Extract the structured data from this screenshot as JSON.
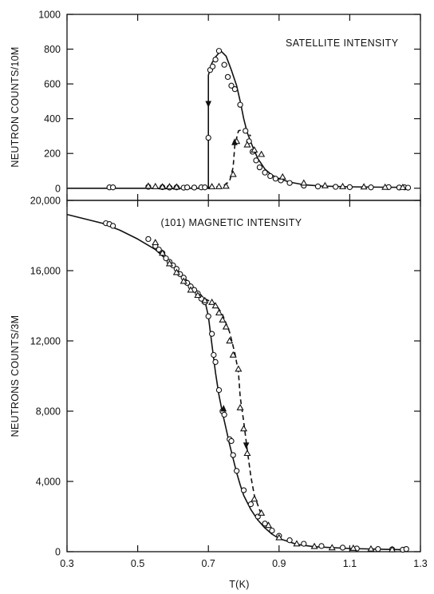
{
  "chart_data": [
    {
      "type": "line",
      "annotation": "SATELLITE INTENSITY",
      "ylabel": "NEUTRON COUNTS/10M",
      "xlabel": "",
      "xlim": [
        0.3,
        1.3
      ],
      "ylim": [
        -70,
        1000
      ],
      "yticks": [
        0,
        200,
        400,
        600,
        800,
        1000
      ],
      "ytick_labels": [
        "0",
        "200",
        "400",
        "600",
        "800",
        "1000"
      ],
      "xticks": [
        0.3,
        0.5,
        0.7,
        0.9,
        1.1,
        1.3
      ],
      "grid": false,
      "series": [
        {
          "marker": "circle",
          "style": "points",
          "points": [
            [
              0.42,
              5
            ],
            [
              0.43,
              5
            ],
            [
              0.53,
              8
            ],
            [
              0.57,
              6
            ],
            [
              0.59,
              4
            ],
            [
              0.61,
              5
            ],
            [
              0.63,
              3
            ],
            [
              0.64,
              5
            ],
            [
              0.66,
              4
            ],
            [
              0.68,
              5
            ],
            [
              0.69,
              5
            ],
            [
              0.7,
              290
            ],
            [
              0.705,
              680
            ],
            [
              0.712,
              700
            ],
            [
              0.72,
              740
            ],
            [
              0.73,
              790
            ],
            [
              0.745,
              710
            ],
            [
              0.755,
              640
            ],
            [
              0.765,
              590
            ],
            [
              0.775,
              570
            ],
            [
              0.79,
              480
            ],
            [
              0.805,
              330
            ],
            [
              0.815,
              270
            ],
            [
              0.825,
              210
            ],
            [
              0.835,
              160
            ],
            [
              0.845,
              120
            ],
            [
              0.86,
              90
            ],
            [
              0.875,
              70
            ],
            [
              0.89,
              55
            ],
            [
              0.905,
              45
            ],
            [
              0.93,
              30
            ],
            [
              0.97,
              15
            ],
            [
              1.01,
              10
            ],
            [
              1.06,
              8
            ],
            [
              1.1,
              6
            ],
            [
              1.16,
              5
            ],
            [
              1.21,
              6
            ],
            [
              1.24,
              4
            ],
            [
              1.255,
              5
            ],
            [
              1.265,
              3
            ]
          ]
        },
        {
          "marker": "triangle",
          "style": "points",
          "points": [
            [
              0.53,
              12
            ],
            [
              0.55,
              10
            ],
            [
              0.57,
              8
            ],
            [
              0.59,
              9
            ],
            [
              0.61,
              7
            ],
            [
              0.71,
              9
            ],
            [
              0.73,
              10
            ],
            [
              0.75,
              12
            ],
            [
              0.77,
              80
            ],
            [
              0.78,
              270
            ],
            [
              0.81,
              250
            ],
            [
              0.83,
              220
            ],
            [
              0.85,
              195
            ],
            [
              0.91,
              65
            ],
            [
              0.97,
              30
            ],
            [
              1.03,
              15
            ],
            [
              1.08,
              10
            ],
            [
              1.14,
              8
            ],
            [
              1.2,
              6
            ],
            [
              1.25,
              5
            ]
          ]
        },
        {
          "style": "solid",
          "name": "",
          "points": [
            [
              0.3,
              0
            ],
            [
              0.69,
              0
            ],
            [
              0.7,
              0
            ],
            [
              0.7,
              650
            ],
            [
              0.71,
              720
            ],
            [
              0.72,
              755
            ],
            [
              0.735,
              790
            ],
            [
              0.75,
              760
            ],
            [
              0.765,
              680
            ],
            [
              0.78,
              590
            ],
            [
              0.79,
              500
            ],
            [
              0.8,
              400
            ],
            [
              0.81,
              320
            ],
            [
              0.825,
              240
            ],
            [
              0.84,
              170
            ],
            [
              0.86,
              110
            ],
            [
              0.88,
              75
            ],
            [
              0.9,
              55
            ],
            [
              0.93,
              35
            ],
            [
              0.97,
              20
            ],
            [
              1.02,
              12
            ],
            [
              1.1,
              8
            ],
            [
              1.2,
              6
            ],
            [
              1.27,
              5
            ]
          ]
        },
        {
          "style": "dashed",
          "name": "",
          "points": [
            [
              0.7,
              5
            ],
            [
              0.74,
              10
            ],
            [
              0.76,
              40
            ],
            [
              0.77,
              120
            ],
            [
              0.775,
              250
            ],
            [
              0.785,
              330
            ],
            [
              0.8,
              340
            ],
            [
              0.82,
              300
            ]
          ]
        }
      ],
      "arrows": [
        {
          "at": [
            0.7,
            500
          ],
          "direction": "down",
          "line": "solid"
        },
        {
          "at": [
            0.774,
            250
          ],
          "direction": "up",
          "line": "dashed"
        }
      ]
    },
    {
      "type": "line",
      "annotation": "(101) MAGNETIC INTENSITY",
      "ylabel": "NEUTRONS COUNTS/3M",
      "xlabel": "T(K)",
      "xlim": [
        0.3,
        1.3
      ],
      "ylim": [
        0,
        20000
      ],
      "yticks": [
        0,
        4000,
        8000,
        12000,
        16000,
        20000
      ],
      "ytick_labels": [
        "0",
        "4,000",
        "8,000",
        "12,000",
        "16,000",
        "20,000"
      ],
      "xticks": [
        0.3,
        0.5,
        0.7,
        0.9,
        1.1,
        1.3
      ],
      "xtick_labels": [
        "0.3",
        "0.5",
        "0.7",
        "0.9",
        "1.1",
        "1.3"
      ],
      "grid": false,
      "series": [
        {
          "marker": "circle",
          "style": "points",
          "points": [
            [
              0.41,
              18700
            ],
            [
              0.42,
              18650
            ],
            [
              0.43,
              18550
            ],
            [
              0.53,
              17800
            ],
            [
              0.55,
              17400
            ],
            [
              0.56,
              17200
            ],
            [
              0.57,
              17000
            ],
            [
              0.58,
              16700
            ],
            [
              0.59,
              16500
            ],
            [
              0.6,
              16300
            ],
            [
              0.61,
              16100
            ],
            [
              0.62,
              15800
            ],
            [
              0.63,
              15600
            ],
            [
              0.64,
              15300
            ],
            [
              0.65,
              15100
            ],
            [
              0.66,
              14900
            ],
            [
              0.67,
              14700
            ],
            [
              0.68,
              14400
            ],
            [
              0.69,
              14200
            ],
            [
              0.7,
              13400
            ],
            [
              0.71,
              12400
            ],
            [
              0.715,
              11200
            ],
            [
              0.72,
              10800
            ],
            [
              0.73,
              9200
            ],
            [
              0.74,
              8000
            ],
            [
              0.745,
              7800
            ],
            [
              0.76,
              6400
            ],
            [
              0.765,
              6300
            ],
            [
              0.77,
              5500
            ],
            [
              0.78,
              4600
            ],
            [
              0.8,
              3500
            ],
            [
              0.82,
              2700
            ],
            [
              0.84,
              2000
            ],
            [
              0.86,
              1600
            ],
            [
              0.88,
              1200
            ],
            [
              0.9,
              900
            ],
            [
              0.93,
              650
            ],
            [
              0.97,
              450
            ],
            [
              1.02,
              320
            ],
            [
              1.08,
              230
            ],
            [
              1.12,
              180
            ],
            [
              1.18,
              150
            ],
            [
              1.22,
              130
            ],
            [
              1.25,
              110
            ],
            [
              1.26,
              150
            ]
          ]
        },
        {
          "marker": "triangle",
          "style": "points",
          "points": [
            [
              0.55,
              17600
            ],
            [
              0.57,
              17000
            ],
            [
              0.59,
              16400
            ],
            [
              0.61,
              15900
            ],
            [
              0.63,
              15400
            ],
            [
              0.65,
              14900
            ],
            [
              0.67,
              14600
            ],
            [
              0.69,
              14300
            ],
            [
              0.71,
              14200
            ],
            [
              0.72,
              14000
            ],
            [
              0.73,
              13600
            ],
            [
              0.74,
              13200
            ],
            [
              0.75,
              12800
            ],
            [
              0.76,
              12000
            ],
            [
              0.77,
              11200
            ],
            [
              0.785,
              10400
            ],
            [
              0.79,
              8200
            ],
            [
              0.8,
              7000
            ],
            [
              0.81,
              5600
            ],
            [
              0.83,
              3000
            ],
            [
              0.85,
              2200
            ],
            [
              0.87,
              1500
            ],
            [
              0.9,
              800
            ],
            [
              0.95,
              450
            ],
            [
              1.0,
              300
            ],
            [
              1.05,
              230
            ],
            [
              1.11,
              200
            ],
            [
              1.16,
              160
            ],
            [
              1.22,
              120
            ]
          ]
        },
        {
          "style": "solid",
          "name": "",
          "points": [
            [
              0.3,
              19200
            ],
            [
              0.35,
              18950
            ],
            [
              0.4,
              18700
            ],
            [
              0.45,
              18300
            ],
            [
              0.5,
              17800
            ],
            [
              0.55,
              17200
            ],
            [
              0.6,
              16300
            ],
            [
              0.65,
              15200
            ],
            [
              0.68,
              14600
            ],
            [
              0.69,
              14300
            ],
            [
              0.7,
              13400
            ],
            [
              0.71,
              11800
            ],
            [
              0.72,
              10200
            ],
            [
              0.73,
              8900
            ],
            [
              0.74,
              7900
            ],
            [
              0.75,
              7000
            ],
            [
              0.76,
              6100
            ],
            [
              0.77,
              5300
            ],
            [
              0.78,
              4500
            ],
            [
              0.79,
              3800
            ],
            [
              0.8,
              3200
            ],
            [
              0.82,
              2400
            ],
            [
              0.84,
              1800
            ],
            [
              0.86,
              1350
            ],
            [
              0.88,
              1000
            ],
            [
              0.9,
              750
            ],
            [
              0.95,
              420
            ],
            [
              1.0,
              280
            ],
            [
              1.1,
              180
            ],
            [
              1.2,
              130
            ],
            [
              1.26,
              110
            ]
          ]
        },
        {
          "style": "dashed",
          "name": "",
          "points": [
            [
              0.69,
              14400
            ],
            [
              0.72,
              14100
            ],
            [
              0.74,
              13500
            ],
            [
              0.76,
              12500
            ],
            [
              0.775,
              11300
            ],
            [
              0.785,
              10200
            ],
            [
              0.79,
              8800
            ],
            [
              0.8,
              7400
            ],
            [
              0.81,
              5800
            ],
            [
              0.82,
              4300
            ],
            [
              0.83,
              3200
            ],
            [
              0.85,
              2100
            ]
          ]
        }
      ],
      "arrows": [
        {
          "at": [
            0.743,
            8000
          ],
          "direction": "up",
          "line": "solid"
        },
        {
          "at": [
            0.807,
            6200
          ],
          "direction": "down",
          "line": "dashed"
        }
      ]
    }
  ]
}
